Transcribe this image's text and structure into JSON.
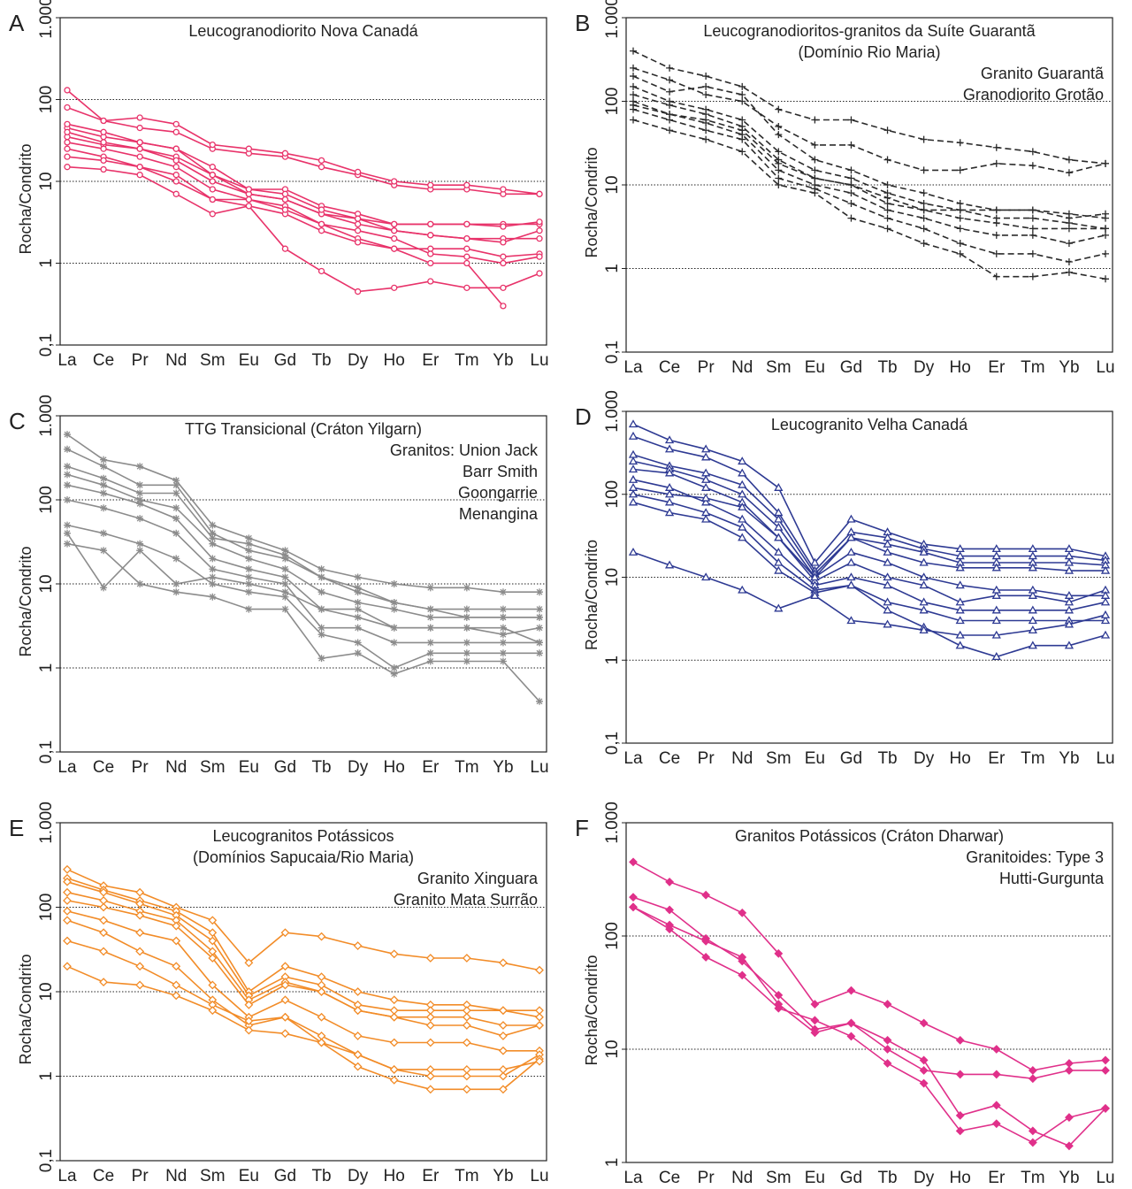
{
  "chart_data": [
    {
      "type": "line",
      "panel": "A",
      "title": "Leucogranodiorito Nova Canadá",
      "ylabel": "Rocha/Condrito",
      "log_y": true,
      "grid": true,
      "marker": "circle",
      "dash": false,
      "color": "#e8336a",
      "categories": [
        "La",
        "Ce",
        "Pr",
        "Nd",
        "Sm",
        "Eu",
        "Gd",
        "Tb",
        "Dy",
        "Ho",
        "Er",
        "Tm",
        "Yb",
        "Lu"
      ],
      "ylim": [
        0.1,
        1000
      ],
      "yticks": [
        {
          "value": 0.1,
          "label": "0,1"
        },
        1,
        10,
        100,
        {
          "value": 1000,
          "label": "1.000"
        }
      ],
      "series": [
        {
          "values": [
            130,
            55,
            45,
            40,
            25,
            22,
            20,
            15,
            12,
            9,
            8,
            8,
            7,
            7
          ]
        },
        {
          "values": [
            80,
            55,
            60,
            50,
            28,
            25,
            22,
            18,
            13,
            10,
            9,
            9,
            8,
            7
          ]
        },
        {
          "values": [
            45,
            35,
            30,
            25,
            15,
            8,
            8,
            5,
            4,
            3,
            3,
            3,
            3,
            3
          ]
        },
        {
          "values": [
            35,
            28,
            25,
            20,
            12,
            7,
            6,
            4,
            3.5,
            2.5,
            2.2,
            2,
            2,
            2
          ]
        },
        {
          "values": [
            30,
            25,
            20,
            15,
            8,
            6,
            5,
            3,
            2,
            1.5,
            1.5,
            1.5,
            1.2,
            1.3
          ]
        },
        {
          "values": [
            25,
            20,
            15,
            12,
            6,
            5,
            1.5,
            0.8,
            0.45,
            0.5,
            0.6,
            0.5,
            0.5,
            0.75
          ]
        },
        {
          "values": [
            15,
            14,
            12,
            7,
            4,
            5,
            4,
            2.5,
            1.8,
            1.5,
            1,
            1,
            0.3,
            null
          ]
        },
        {
          "values": [
            40,
            30,
            25,
            18,
            10,
            7,
            6,
            4,
            3,
            2.5,
            2.2,
            2,
            1.8,
            2.5
          ]
        },
        {
          "values": [
            50,
            40,
            30,
            25,
            12,
            8,
            7,
            4.5,
            3.5,
            3,
            3,
            3,
            2.8,
            3.2
          ]
        },
        {
          "values": [
            20,
            18,
            15,
            10,
            6,
            6,
            4.5,
            3,
            2.5,
            2,
            1.3,
            1.2,
            1,
            1.2
          ]
        }
      ]
    },
    {
      "type": "line",
      "panel": "B",
      "title": "Leucogranodioritos-granitos da Suíte Guarantã",
      "subtitle": "(Domínio Rio Maria)",
      "annotations": [
        "Granito Guarantã",
        "Granodiorito Grotão"
      ],
      "ylabel": "Rocha/Condrito",
      "log_y": true,
      "grid": true,
      "marker": "plus",
      "dash": true,
      "color": "#2b2b2b",
      "categories": [
        "La",
        "Ce",
        "Pr",
        "Nd",
        "Sm",
        "Eu",
        "Gd",
        "Tb",
        "Dy",
        "Ho",
        "Er",
        "Tm",
        "Yb",
        "Lu"
      ],
      "ylim": [
        0.1,
        1000
      ],
      "yticks": [
        {
          "value": 0.1,
          "label": "0,1"
        },
        1,
        10,
        100,
        {
          "value": 1000,
          "label": "1.000"
        }
      ],
      "series": [
        {
          "values": [
            400,
            250,
            200,
            150,
            80,
            60,
            60,
            45,
            35,
            32,
            28,
            25,
            20,
            18
          ]
        },
        {
          "values": [
            250,
            180,
            120,
            100,
            50,
            30,
            30,
            20,
            15,
            15,
            18,
            17,
            14,
            18
          ]
        },
        {
          "values": [
            150,
            100,
            80,
            60,
            25,
            15,
            12,
            8,
            6,
            5,
            4,
            4,
            3.5,
            3
          ]
        },
        {
          "values": [
            120,
            90,
            70,
            50,
            20,
            12,
            10,
            6,
            5,
            4,
            3.5,
            3,
            3,
            3
          ]
        },
        {
          "values": [
            100,
            70,
            55,
            40,
            15,
            10,
            8,
            5,
            4,
            3,
            2.5,
            2.5,
            2,
            2.5
          ]
        },
        {
          "values": [
            80,
            60,
            45,
            35,
            12,
            9,
            6,
            4,
            3,
            2,
            1.5,
            1.5,
            1.2,
            1.5
          ]
        },
        {
          "values": [
            60,
            45,
            35,
            25,
            10,
            8,
            4,
            3,
            2,
            1.5,
            0.8,
            0.8,
            0.9,
            0.75
          ]
        },
        {
          "values": [
            200,
            130,
            150,
            120,
            40,
            20,
            15,
            10,
            8,
            6,
            5,
            5,
            4.5,
            4
          ]
        },
        {
          "values": [
            90,
            70,
            60,
            45,
            18,
            12,
            10,
            7,
            5,
            5,
            5,
            5,
            4,
            4.5
          ]
        }
      ]
    },
    {
      "type": "line",
      "panel": "C",
      "title": "TTG Transicional (Cráton Yilgarn)",
      "annotations": [
        "Granitos: Union Jack",
        "Barr Smith",
        "Goongarrie",
        "Menangina"
      ],
      "ylabel": "Rocha/Condrito",
      "log_y": true,
      "grid": true,
      "marker": "asterisk",
      "dash": false,
      "color": "#8c8c8c",
      "categories": [
        "La",
        "Ce",
        "Pr",
        "Nd",
        "Sm",
        "Eu",
        "Gd",
        "Tb",
        "Dy",
        "Ho",
        "Er",
        "Tm",
        "Yb",
        "Lu"
      ],
      "ylim": [
        0.1,
        1000
      ],
      "yticks": [
        {
          "value": 0.1,
          "label": "0,1"
        },
        1,
        10,
        100,
        {
          "value": 1000,
          "label": "1.000"
        }
      ],
      "series": [
        {
          "values": [
            600,
            300,
            250,
            170,
            50,
            35,
            25,
            15,
            12,
            10,
            9,
            9,
            8,
            8
          ]
        },
        {
          "values": [
            400,
            250,
            150,
            150,
            40,
            25,
            20,
            12,
            8,
            6,
            5,
            5,
            5,
            5
          ]
        },
        {
          "values": [
            200,
            150,
            100,
            80,
            30,
            20,
            15,
            8,
            6,
            5,
            4,
            4,
            4,
            4
          ]
        },
        {
          "values": [
            150,
            120,
            90,
            60,
            20,
            15,
            12,
            5,
            5,
            3,
            3,
            3,
            3,
            2
          ]
        },
        {
          "values": [
            100,
            80,
            60,
            40,
            15,
            12,
            10,
            3,
            3,
            2,
            2,
            2,
            2,
            2
          ]
        },
        {
          "values": [
            50,
            40,
            30,
            20,
            10,
            8,
            7,
            2.5,
            2,
            1,
            1.5,
            1.5,
            1.5,
            1.5
          ]
        },
        {
          "values": [
            30,
            25,
            10,
            8,
            7,
            5,
            5,
            1.3,
            1.5,
            0.85,
            1.2,
            1.2,
            1.2,
            0.4
          ]
        },
        {
          "values": [
            40,
            9,
            25,
            10,
            12,
            10,
            8,
            5,
            4,
            3,
            3,
            3,
            2.5,
            3
          ]
        },
        {
          "values": [
            250,
            180,
            120,
            120,
            35,
            30,
            22,
            12,
            9,
            6,
            5,
            4,
            4,
            4
          ]
        }
      ]
    },
    {
      "type": "line",
      "panel": "D",
      "title": "Leucogranito Velha Canadá",
      "ylabel": "Rocha/Condrito",
      "log_y": true,
      "grid": true,
      "marker": "triangle",
      "dash": false,
      "color": "#2e3a93",
      "categories": [
        "La",
        "Ce",
        "Pr",
        "Nd",
        "Sm",
        "Eu",
        "Gd",
        "Tb",
        "Dy",
        "Ho",
        "Er",
        "Tm",
        "Yb",
        "Lu"
      ],
      "ylim": [
        0.1,
        1000
      ],
      "yticks": [
        {
          "value": 0.1,
          "label": "0,1"
        },
        1,
        10,
        100,
        {
          "value": 1000,
          "label": "1.000"
        }
      ],
      "series": [
        {
          "values": [
            700,
            450,
            350,
            250,
            120,
            15,
            50,
            35,
            25,
            22,
            22,
            22,
            22,
            18
          ]
        },
        {
          "values": [
            500,
            350,
            280,
            180,
            60,
            12,
            35,
            30,
            22,
            18,
            18,
            18,
            18,
            16
          ]
        },
        {
          "values": [
            300,
            220,
            180,
            130,
            50,
            11,
            30,
            25,
            20,
            15,
            15,
            15,
            15,
            14
          ]
        },
        {
          "values": [
            250,
            200,
            150,
            100,
            40,
            10,
            30,
            20,
            15,
            13,
            13,
            13,
            12,
            12
          ]
        },
        {
          "values": [
            200,
            180,
            120,
            80,
            30,
            9,
            15,
            10,
            8,
            5,
            6,
            6,
            5,
            7
          ]
        },
        {
          "values": [
            150,
            120,
            80,
            50,
            20,
            8,
            10,
            8,
            5,
            4,
            4,
            4,
            4,
            5
          ]
        },
        {
          "values": [
            100,
            80,
            60,
            40,
            15,
            7,
            8,
            5,
            4,
            3,
            3,
            3,
            3,
            3
          ]
        },
        {
          "values": [
            80,
            60,
            50,
            30,
            12,
            6.5,
            8,
            4,
            2.5,
            1.5,
            1.1,
            1.5,
            1.5,
            2
          ]
        },
        {
          "values": [
            20,
            14,
            10,
            7,
            4.2,
            6,
            3,
            2.7,
            2.3,
            2,
            2,
            2.3,
            2.7,
            3.5
          ]
        },
        {
          "values": [
            120,
            100,
            90,
            70,
            30,
            10,
            20,
            15,
            10,
            8,
            7,
            7,
            6,
            6
          ]
        }
      ]
    },
    {
      "type": "line",
      "panel": "E",
      "title": "Leucogranitos Potássicos",
      "subtitle": "(Domínios Sapucaia/Rio Maria)",
      "annotations": [
        "Granito Xinguara",
        "Granito Mata Surrão"
      ],
      "ylabel": "Rocha/Condrito",
      "log_y": true,
      "grid": true,
      "marker": "diamond",
      "dash": false,
      "color": "#f28c28",
      "categories": [
        "La",
        "Ce",
        "Pr",
        "Nd",
        "Sm",
        "Eu",
        "Gd",
        "Tb",
        "Dy",
        "Ho",
        "Er",
        "Tm",
        "Yb",
        "Lu"
      ],
      "ylim": [
        0.1,
        1000
      ],
      "yticks": [
        {
          "value": 0.1,
          "label": "0,1"
        },
        1,
        10,
        100,
        {
          "value": 1000,
          "label": "1.000"
        }
      ],
      "series": [
        {
          "values": [
            280,
            180,
            150,
            100,
            70,
            22,
            50,
            45,
            35,
            28,
            25,
            25,
            22,
            18
          ]
        },
        {
          "values": [
            220,
            160,
            120,
            90,
            50,
            10,
            20,
            15,
            10,
            8,
            7,
            7,
            6,
            6
          ]
        },
        {
          "values": [
            200,
            150,
            110,
            80,
            40,
            9,
            15,
            12,
            7,
            6,
            6,
            6,
            6,
            5
          ]
        },
        {
          "values": [
            150,
            120,
            90,
            70,
            30,
            8,
            13,
            10,
            6,
            5,
            5,
            5,
            4,
            4
          ]
        },
        {
          "values": [
            120,
            100,
            80,
            60,
            25,
            7,
            12,
            10,
            6,
            5,
            4,
            4,
            3,
            4
          ]
        },
        {
          "values": [
            90,
            70,
            50,
            40,
            12,
            5,
            8,
            5,
            3,
            2.5,
            2.5,
            2.5,
            2,
            2
          ]
        },
        {
          "values": [
            70,
            50,
            30,
            20,
            8,
            4,
            5,
            3,
            1.8,
            1.2,
            1,
            1,
            1,
            1.8
          ]
        },
        {
          "values": [
            40,
            30,
            20,
            12,
            7,
            4.5,
            5,
            2.5,
            1.3,
            0.9,
            0.7,
            0.7,
            0.7,
            1.6
          ]
        },
        {
          "values": [
            20,
            13,
            12,
            9,
            6,
            3.5,
            3.2,
            2.5,
            1.8,
            1.2,
            1.2,
            1.2,
            1.2,
            1.5
          ]
        }
      ]
    },
    {
      "type": "line",
      "panel": "F",
      "title": "Granitos Potássicos (Cráton Dharwar)",
      "annotations": [
        "Granitoides: Type 3",
        "Hutti-Gurgunta"
      ],
      "ylabel": "Rocha/Condrito",
      "log_y": true,
      "grid": true,
      "marker": "diamond-filled",
      "dash": false,
      "color": "#e0308a",
      "categories": [
        "La",
        "Ce",
        "Pr",
        "Nd",
        "Sm",
        "Eu",
        "Gd",
        "Tb",
        "Dy",
        "Ho",
        "Er",
        "Tm",
        "Yb",
        "Lu"
      ],
      "ylim": [
        1,
        1000
      ],
      "yticks": [
        1,
        10,
        100,
        {
          "value": 1000,
          "label": "1.000"
        }
      ],
      "series": [
        {
          "values": [
            450,
            300,
            230,
            160,
            70,
            25,
            33,
            25,
            17,
            12,
            10,
            6.5,
            7.5,
            8
          ]
        },
        {
          "values": [
            220,
            170,
            95,
            60,
            30,
            15,
            17,
            10,
            6.5,
            6,
            6,
            5.5,
            6.5,
            6.5
          ]
        },
        {
          "values": [
            180,
            125,
            90,
            65,
            25,
            14,
            17,
            12,
            8,
            2.6,
            3.2,
            1.9,
            1.4,
            3
          ]
        },
        {
          "values": [
            180,
            115,
            65,
            45,
            23,
            18,
            13,
            7.5,
            5,
            1.9,
            2.2,
            1.5,
            2.5,
            3
          ]
        }
      ]
    }
  ]
}
